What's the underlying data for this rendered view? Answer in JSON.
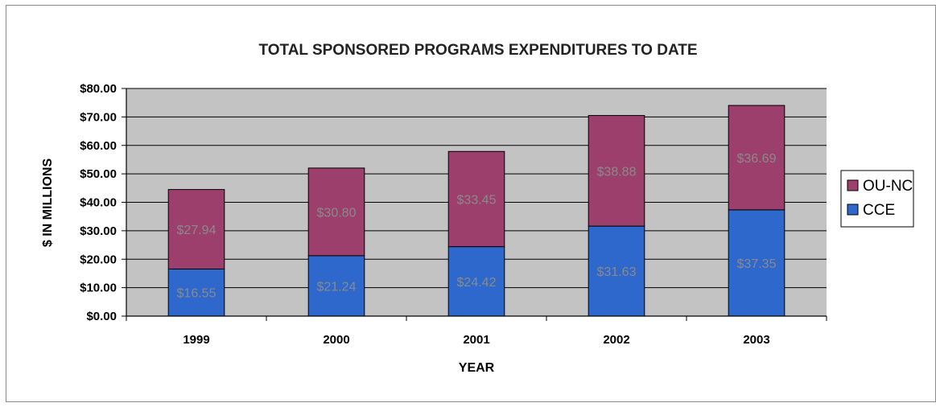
{
  "chart_data": {
    "type": "bar",
    "stacked": true,
    "title": "TOTAL SPONSORED PROGRAMS EXPENDITURES TO DATE",
    "xlabel": "YEAR",
    "ylabel": "$ IN MILLIONS",
    "categories": [
      "1999",
      "2000",
      "2001",
      "2002",
      "2003"
    ],
    "series": [
      {
        "name": "CCE",
        "values": [
          16.55,
          21.24,
          24.42,
          31.63,
          37.35
        ],
        "labels": [
          "$16.55",
          "$21.24",
          "$24.42",
          "$31.63",
          "$37.35"
        ],
        "color": "#2E68CC"
      },
      {
        "name": "OU-NC",
        "values": [
          27.94,
          30.8,
          33.45,
          38.88,
          36.69
        ],
        "labels": [
          "$27.94",
          "$30.80",
          "$33.45",
          "$38.88",
          "$36.69"
        ],
        "color": "#9C3F6C"
      }
    ],
    "ylim": [
      0,
      80
    ],
    "yticks": [
      "$0.00",
      "$10.00",
      "$20.00",
      "$30.00",
      "$40.00",
      "$50.00",
      "$60.00",
      "$70.00",
      "$80.00"
    ],
    "grid": true,
    "legend_position": "right"
  }
}
